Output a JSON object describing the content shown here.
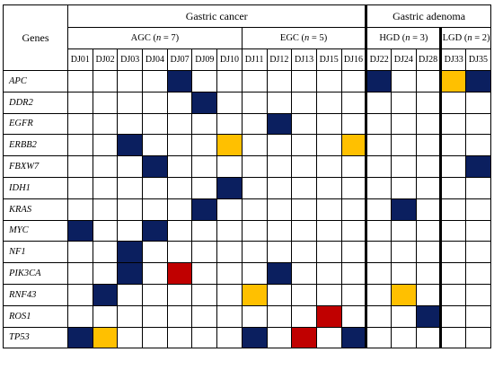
{
  "genes_header": "Genes",
  "groups": [
    {
      "label": "Gastric cancer",
      "span": 12
    },
    {
      "label": "Gastric adenoma",
      "span": 5
    }
  ],
  "subgroups": [
    {
      "name": "AGC",
      "n_prefix": "(",
      "n_var": "n",
      "n_eq": " = 7)",
      "span": 7
    },
    {
      "name": "EGC",
      "n_prefix": "(",
      "n_var": "n",
      "n_eq": " = 5)",
      "span": 5
    },
    {
      "name": "HGD",
      "n_prefix": "(",
      "n_var": "n",
      "n_eq": " = 3)",
      "span": 3
    },
    {
      "name": "LGD",
      "n_prefix": "(",
      "n_var": "n",
      "n_eq": " = 2)",
      "span": 2
    }
  ],
  "samples": [
    "DJ01",
    "DJ02",
    "DJ03",
    "DJ04",
    "DJ07",
    "DJ09",
    "DJ10",
    "DJ11",
    "DJ12",
    "DJ13",
    "DJ15",
    "DJ16",
    "DJ22",
    "DJ24",
    "DJ28",
    "DJ33",
    "DJ35"
  ],
  "colors": {
    "navy": "#0b1f5f",
    "yellow": "#ffc000",
    "red": "#c00000"
  },
  "genes": [
    {
      "name": "APC",
      "cells": [
        "",
        "",
        "",
        "",
        "navy",
        "",
        "",
        "",
        "",
        "",
        "",
        "",
        "navy",
        "",
        "",
        "yellow",
        "navy"
      ]
    },
    {
      "name": "DDR2",
      "cells": [
        "",
        "",
        "",
        "",
        "",
        "navy",
        "",
        "",
        "",
        "",
        "",
        "",
        "",
        "",
        "",
        "",
        ""
      ]
    },
    {
      "name": "EGFR",
      "cells": [
        "",
        "",
        "",
        "",
        "",
        "",
        "",
        "",
        "navy",
        "",
        "",
        "",
        "",
        "",
        "",
        "",
        ""
      ]
    },
    {
      "name": "ERBB2",
      "cells": [
        "",
        "",
        "navy",
        "",
        "",
        "",
        "yellow",
        "",
        "",
        "",
        "",
        "yellow",
        "",
        "",
        "",
        "",
        ""
      ]
    },
    {
      "name": "FBXW7",
      "cells": [
        "",
        "",
        "",
        "navy",
        "",
        "",
        "",
        "",
        "",
        "",
        "",
        "",
        "",
        "",
        "",
        "",
        "navy"
      ]
    },
    {
      "name": "IDH1",
      "cells": [
        "",
        "",
        "",
        "",
        "",
        "",
        "navy",
        "",
        "",
        "",
        "",
        "",
        "",
        "",
        "",
        "",
        ""
      ]
    },
    {
      "name": "KRAS",
      "cells": [
        "",
        "",
        "",
        "",
        "",
        "navy",
        "",
        "",
        "",
        "",
        "",
        "",
        "",
        "navy",
        "",
        "",
        ""
      ]
    },
    {
      "name": "MYC",
      "cells": [
        "navy",
        "",
        "",
        "navy",
        "",
        "",
        "",
        "",
        "",
        "",
        "",
        "",
        "",
        "",
        "",
        "",
        ""
      ]
    },
    {
      "name": "NF1",
      "cells": [
        "",
        "",
        "navy",
        "",
        "",
        "",
        "",
        "",
        "",
        "",
        "",
        "",
        "",
        "",
        "",
        "",
        ""
      ]
    },
    {
      "name": "PIK3CA",
      "cells": [
        "",
        "",
        "navy",
        "",
        "red",
        "",
        "",
        "",
        "navy",
        "",
        "",
        "",
        "",
        "",
        "",
        "",
        ""
      ]
    },
    {
      "name": "RNF43",
      "cells": [
        "",
        "navy",
        "",
        "",
        "",
        "",
        "",
        "yellow",
        "",
        "",
        "",
        "",
        "",
        "yellow",
        "",
        "",
        ""
      ]
    },
    {
      "name": "ROS1",
      "cells": [
        "",
        "",
        "",
        "",
        "",
        "",
        "",
        "",
        "",
        "",
        "red",
        "",
        "",
        "",
        "navy",
        "",
        ""
      ]
    },
    {
      "name": "TP53",
      "cells": [
        "navy",
        "yellow",
        "",
        "",
        "",
        "",
        "",
        "navy",
        "",
        "red",
        "",
        "navy",
        "",
        "",
        "",
        "",
        ""
      ]
    }
  ]
}
